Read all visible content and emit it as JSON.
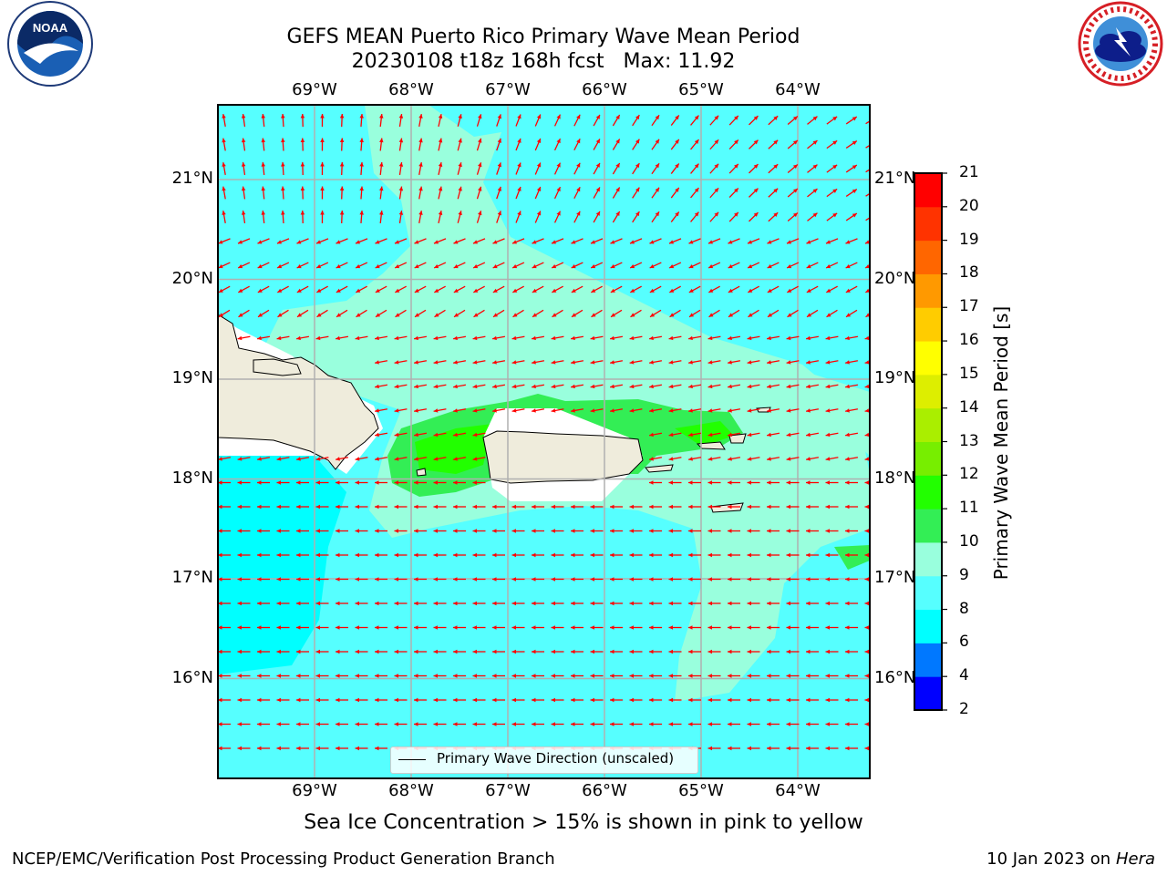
{
  "title_line1": "GEFS MEAN Puerto Rico Primary Wave Mean Period",
  "title_line2": "20230108 t18z 168h fcst   Max: 11.92",
  "logos": {
    "left": {
      "icon": "noaa-logo",
      "text": "NOAA",
      "ring_text": "NATIONAL OCEANIC AND ATMOSPHERIC ADMINISTRATION · U.S. DEPARTMENT OF COMMERCE"
    },
    "right": {
      "icon": "nws-logo",
      "ring_text": "NATIONAL WEATHER SERVICE"
    }
  },
  "longitude_labels": [
    "69°W",
    "68°W",
    "67°W",
    "66°W",
    "65°W",
    "64°W"
  ],
  "latitude_labels": [
    "21°N",
    "20°N",
    "19°N",
    "18°N",
    "17°N",
    "16°N"
  ],
  "legend_label": "Primary Wave Direction (unscaled)",
  "colorbar": {
    "label": "Primary Wave Mean Period [s]",
    "ticks": [
      "21",
      "20",
      "19",
      "18",
      "17",
      "16",
      "15",
      "14",
      "13",
      "12",
      "11",
      "10",
      "9",
      "8",
      "6",
      "4",
      "2"
    ],
    "colors_bottom_to_top": [
      "#0000ff",
      "#0078ff",
      "#00ffff",
      "#56ffff",
      "#99ffdd",
      "#33ee55",
      "#22ff00",
      "#77ee00",
      "#aaee00",
      "#ddee00",
      "#ffff00",
      "#ffcc00",
      "#ff9900",
      "#ff6600",
      "#ff3300",
      "#ff0000"
    ]
  },
  "colors": {
    "ocean_low": "#00ffff",
    "ocean_mid": "#56ffff",
    "ocean_high": "#99ffdd",
    "green_band": "#33ee55",
    "green_core": "#22ff00",
    "land": "#efecdc",
    "arrow": "#ff0000",
    "grid": "#b0b0b0"
  },
  "ice_note": "Sea Ice Concentration > 15% is shown in pink to yellow",
  "footer_left": "NCEP/EMC/Verification Post Processing Product Generation Branch",
  "footer_right_date": "10 Jan 2023 on",
  "footer_right_host": "Hera"
}
